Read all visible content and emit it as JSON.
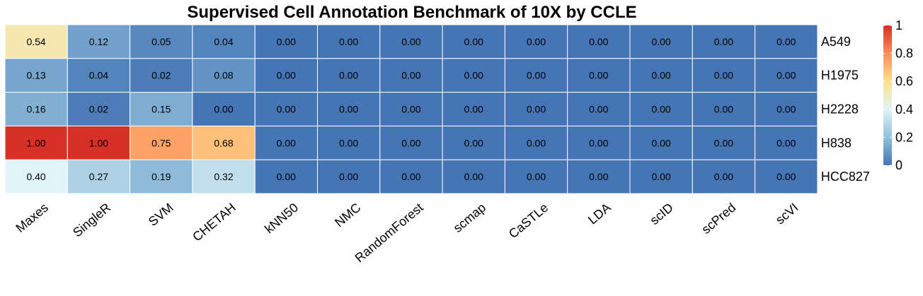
{
  "chart_data": {
    "type": "heatmap",
    "title": "Supervised Cell Annotation Benchmark of 10X by CCLE",
    "columns": [
      "Maxes",
      "SingleR",
      "SVM",
      "CHETAH",
      "kNN50",
      "NMC",
      "RandomForest",
      "scmap",
      "CaSTLe",
      "LDA",
      "scID",
      "scPred",
      "scVI"
    ],
    "rows": [
      "A549",
      "H1975",
      "H2228",
      "H838",
      "HCC827"
    ],
    "values": [
      [
        0.54,
        0.12,
        0.05,
        0.04,
        0.0,
        0.0,
        0.0,
        0.0,
        0.0,
        0.0,
        0.0,
        0.0,
        0.0
      ],
      [
        0.13,
        0.04,
        0.02,
        0.08,
        0.0,
        0.0,
        0.0,
        0.0,
        0.0,
        0.0,
        0.0,
        0.0,
        0.0
      ],
      [
        0.16,
        0.02,
        0.15,
        0.0,
        0.0,
        0.0,
        0.0,
        0.0,
        0.0,
        0.0,
        0.0,
        0.0,
        0.0
      ],
      [
        1.0,
        1.0,
        0.75,
        0.68,
        0.0,
        0.0,
        0.0,
        0.0,
        0.0,
        0.0,
        0.0,
        0.0,
        0.0
      ],
      [
        0.4,
        0.27,
        0.19,
        0.32,
        0.0,
        0.0,
        0.0,
        0.0,
        0.0,
        0.0,
        0.0,
        0.0,
        0.0
      ]
    ],
    "cell_labels": [
      [
        "0.54",
        "0.12",
        "0.05",
        "0.04",
        "0.00",
        "0.00",
        "0.00",
        "0.00",
        "0.00",
        "0.00",
        "0.00",
        "0.00",
        "0.00"
      ],
      [
        "0.13",
        "0.04",
        "0.02",
        "0.08",
        "0.00",
        "0.00",
        "0.00",
        "0.00",
        "0.00",
        "0.00",
        "0.00",
        "0.00",
        "0.00"
      ],
      [
        "0.16",
        "0.02",
        "0.15",
        "0.00",
        "0.00",
        "0.00",
        "0.00",
        "0.00",
        "0.00",
        "0.00",
        "0.00",
        "0.00",
        "0.00"
      ],
      [
        "1.00",
        "1.00",
        "0.75",
        "0.68",
        "0.00",
        "0.00",
        "0.00",
        "0.00",
        "0.00",
        "0.00",
        "0.00",
        "0.00",
        "0.00"
      ],
      [
        "0.40",
        "0.27",
        "0.19",
        "0.32",
        "0.00",
        "0.00",
        "0.00",
        "0.00",
        "0.00",
        "0.00",
        "0.00",
        "0.00",
        "0.00"
      ]
    ],
    "color_scale": {
      "range": [
        0,
        1
      ],
      "stops": [
        {
          "value": 0.0,
          "color": "#4575b4"
        },
        {
          "value": 0.2,
          "color": "#91bfdb"
        },
        {
          "value": 0.4,
          "color": "#e0f3f8"
        },
        {
          "value": 0.6,
          "color": "#fee090"
        },
        {
          "value": 0.8,
          "color": "#fc8d59"
        },
        {
          "value": 1.0,
          "color": "#d73027"
        }
      ]
    },
    "legend": {
      "position": "right",
      "tick_values": [
        0,
        0.2,
        0.4,
        0.6,
        0.8,
        1
      ],
      "tick_labels": [
        "0",
        "0.2",
        "0.4",
        "0.6",
        "0.8",
        "1"
      ]
    },
    "grid": true,
    "cell_border_color": "#ffffff"
  }
}
